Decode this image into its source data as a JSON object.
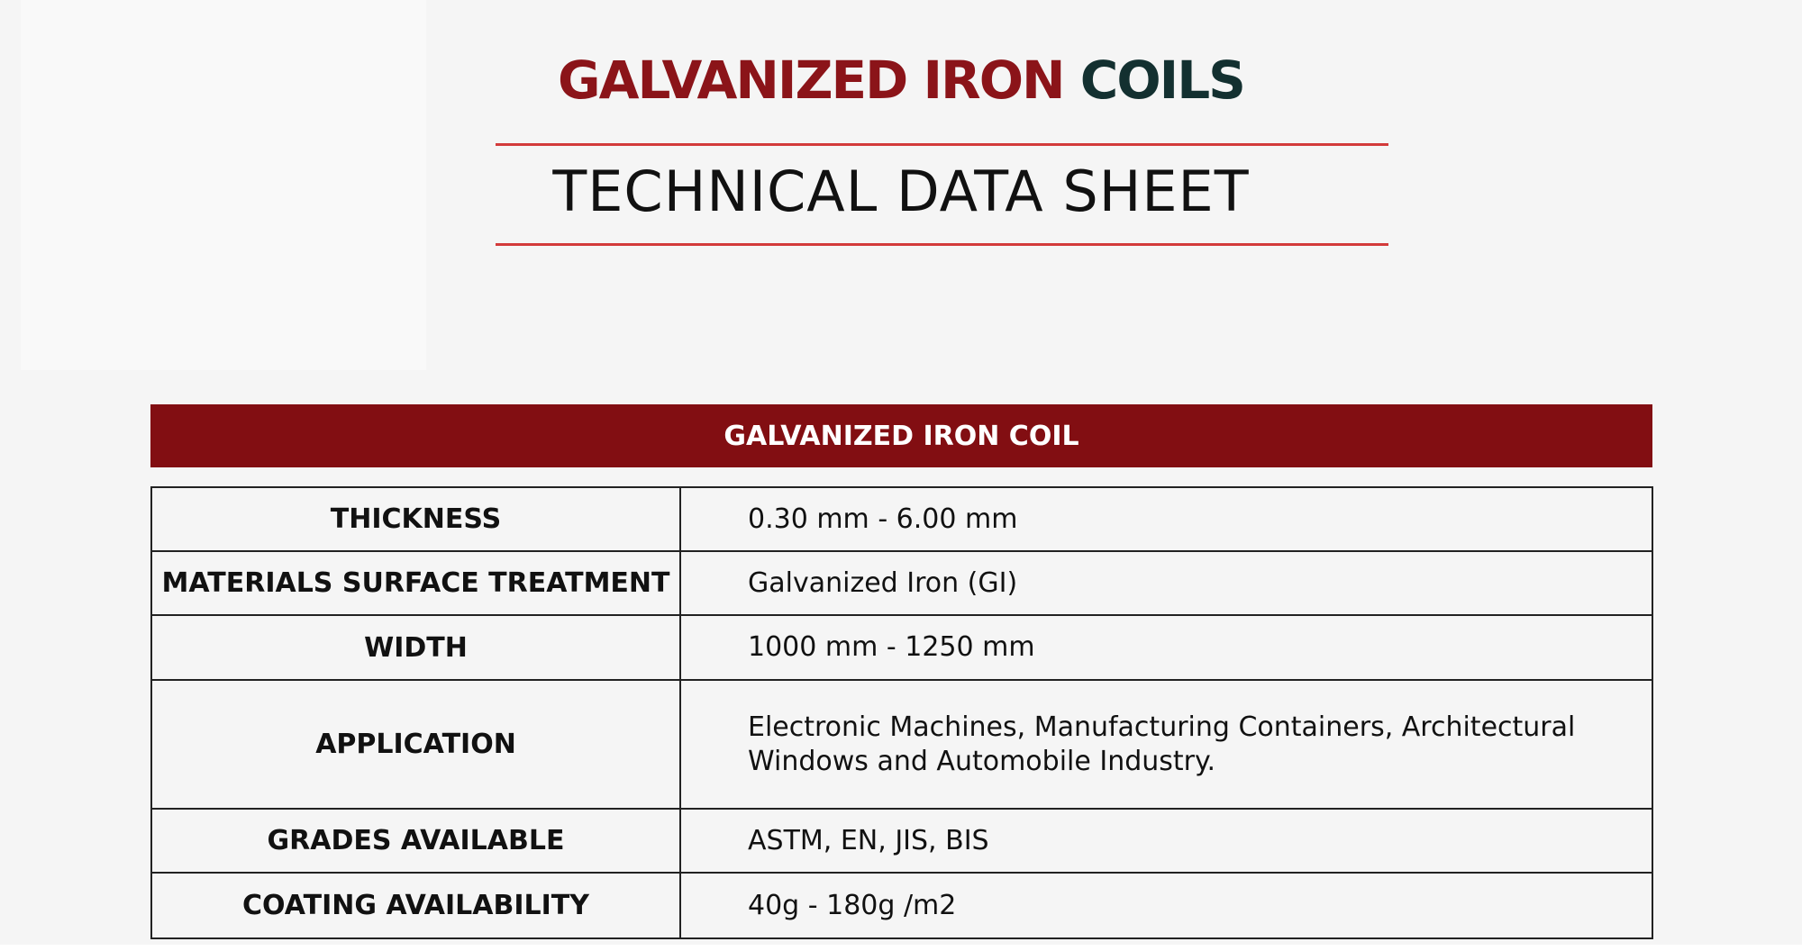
{
  "header": {
    "title_red": "GALVANIZED IRON",
    "title_green": "COILS",
    "subtitle": "TECHNICAL DATA SHEET"
  },
  "table": {
    "title": "GALVANIZED IRON COIL",
    "rows": [
      [
        "THICKNESS",
        "0.30 mm - 6.00 mm"
      ],
      [
        "MATERIALS SURFACE TREATMENT",
        "Galvanized Iron (GI)"
      ],
      [
        "WIDTH",
        "1000 mm - 1250 mm"
      ],
      [
        "APPLICATION",
        "Electronic Machines, Manufacturing Containers, Architectural Windows and Automobile Industry."
      ],
      [
        "GRADES AVAILABLE",
        "ASTM, EN, JIS, BIS"
      ],
      [
        "COATING AVAILABILITY",
        "40g - 180g /m2"
      ]
    ]
  }
}
